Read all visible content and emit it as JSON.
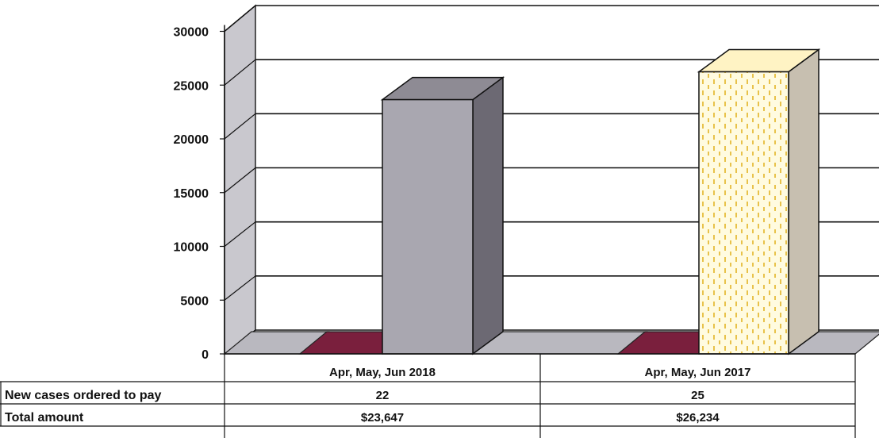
{
  "chart_data": {
    "type": "bar",
    "categories": [
      "Apr, May, Jun 2018",
      "Apr, May, Jun 2017"
    ],
    "series": [
      {
        "values": [
          0,
          0
        ],
        "color": "#7a1f3d"
      },
      {
        "values": [
          23647,
          26234
        ],
        "color": "#a9a7b0"
      }
    ],
    "ylim": [
      0,
      30000
    ],
    "yticks": [
      0,
      5000,
      10000,
      15000,
      20000,
      25000,
      30000
    ],
    "grid": true,
    "table": {
      "rows": [
        {
          "label": "New cases ordered to pay",
          "values": [
            "22",
            "25"
          ]
        },
        {
          "label": "Total amount",
          "values": [
            "$23,647",
            "$26,234"
          ]
        }
      ]
    },
    "colors": {
      "bar_2018": "#a9a7b0",
      "bar_2017": "#fffbe0",
      "bar_2017_pattern": "#e8c24a",
      "zero_bar": "#7a1f3d",
      "wall": "#c9c8ce",
      "floor": "#b9b8bf"
    }
  }
}
